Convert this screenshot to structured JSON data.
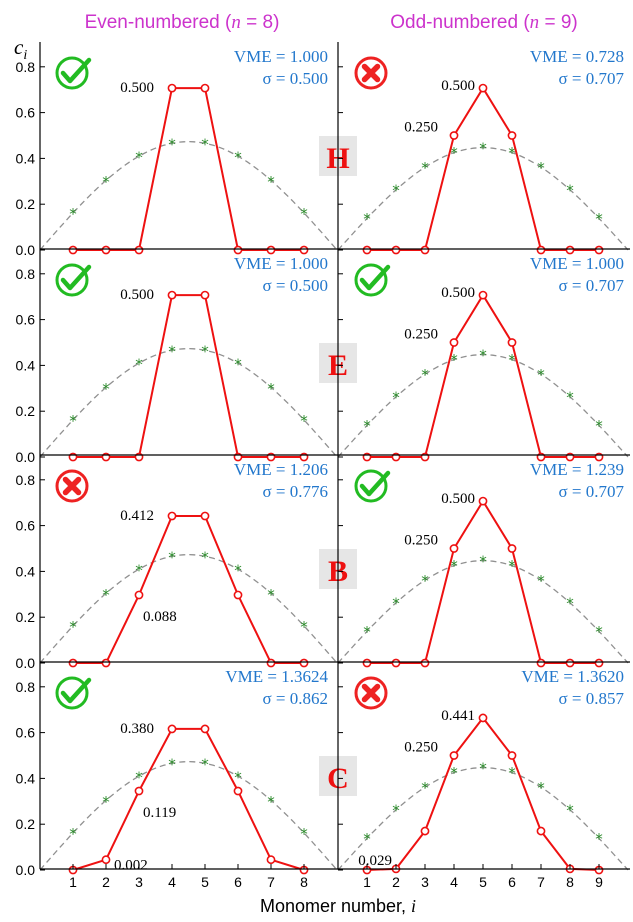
{
  "header": {
    "even_title": "Even-numbered (n = 8)",
    "odd_title": "Odd-numbered (n = 9)"
  },
  "y_axis_label": "c_i",
  "x_axis_label": "Monomer number, i",
  "colors": {
    "title": "#cc33cc",
    "series": "#ee1111",
    "reference": "#909090",
    "reference_marker": "#2a8a2a",
    "stats": "#2277cc",
    "check": "#22bb22",
    "cross": "#ee2222",
    "method_label": "#ee1111",
    "method_box": "#e6e6e6"
  },
  "chart_data": [
    {
      "type": "line",
      "panel": "H-even",
      "method": "H",
      "column": "even",
      "status": "check",
      "vme": "VME = 1.000",
      "sigma": "σ = 0.500",
      "x": [
        1,
        2,
        3,
        4,
        5,
        6,
        7,
        8
      ],
      "series": [
        {
          "values": [
            0,
            0,
            0,
            0.707,
            0.707,
            0,
            0,
            0
          ]
        },
        {
          "values": [
            0.161,
            0.302,
            0.408,
            0.466,
            0.466,
            0.408,
            0.302,
            0.161
          ]
        }
      ],
      "labels": [
        {
          "text": "0.500",
          "i": 4
        }
      ],
      "xlim": [
        0,
        9
      ],
      "ylim": [
        0,
        0.88
      ],
      "yticks": [
        "0.0",
        "0.2",
        "0.4",
        "0.6",
        "0.8"
      ]
    },
    {
      "type": "line",
      "panel": "H-odd",
      "method": "H",
      "column": "odd",
      "status": "cross",
      "vme": "VME = 0.728",
      "sigma": "σ = 0.707",
      "x": [
        1,
        2,
        3,
        4,
        5,
        6,
        7,
        8,
        9
      ],
      "series": [
        {
          "values": [
            0,
            0,
            0,
            0.5,
            0.707,
            0.5,
            0,
            0,
            0
          ]
        },
        {
          "values": [
            0.139,
            0.264,
            0.363,
            0.427,
            0.447,
            0.427,
            0.363,
            0.264,
            0.139
          ]
        }
      ],
      "labels": [
        {
          "text": "0.500",
          "i": 5
        },
        {
          "text": "0.250",
          "i": 4
        }
      ],
      "xlim": [
        0,
        10
      ],
      "ylim": [
        0,
        0.88
      ]
    },
    {
      "type": "line",
      "panel": "E-even",
      "method": "E",
      "column": "even",
      "status": "check",
      "vme": "VME = 1.000",
      "sigma": "σ = 0.500",
      "x": [
        1,
        2,
        3,
        4,
        5,
        6,
        7,
        8
      ],
      "series": [
        {
          "values": [
            0,
            0,
            0,
            0.707,
            0.707,
            0,
            0,
            0
          ]
        },
        {
          "values": [
            0.161,
            0.302,
            0.408,
            0.466,
            0.466,
            0.408,
            0.302,
            0.161
          ]
        }
      ],
      "labels": [
        {
          "text": "0.500",
          "i": 4
        }
      ],
      "xlim": [
        0,
        9
      ],
      "ylim": [
        0,
        0.88
      ],
      "yticks": [
        "0.0",
        "0.2",
        "0.4",
        "0.6",
        "0.8"
      ]
    },
    {
      "type": "line",
      "panel": "E-odd",
      "method": "E",
      "column": "odd",
      "status": "check",
      "vme": "VME = 1.000",
      "sigma": "σ = 0.707",
      "x": [
        1,
        2,
        3,
        4,
        5,
        6,
        7,
        8,
        9
      ],
      "series": [
        {
          "values": [
            0,
            0,
            0,
            0.5,
            0.707,
            0.5,
            0,
            0,
            0
          ]
        },
        {
          "values": [
            0.139,
            0.264,
            0.363,
            0.427,
            0.447,
            0.427,
            0.363,
            0.264,
            0.139
          ]
        }
      ],
      "labels": [
        {
          "text": "0.500",
          "i": 5
        },
        {
          "text": "0.250",
          "i": 4
        }
      ],
      "xlim": [
        0,
        10
      ],
      "ylim": [
        0,
        0.88
      ]
    },
    {
      "type": "line",
      "panel": "B-even",
      "method": "B",
      "column": "even",
      "status": "cross",
      "vme": "VME = 1.206",
      "sigma": "σ = 0.776",
      "x": [
        1,
        2,
        3,
        4,
        5,
        6,
        7,
        8
      ],
      "series": [
        {
          "values": [
            0,
            0,
            0.297,
            0.642,
            0.642,
            0.297,
            0,
            0
          ]
        },
        {
          "values": [
            0.161,
            0.302,
            0.408,
            0.466,
            0.466,
            0.408,
            0.302,
            0.161
          ]
        }
      ],
      "labels": [
        {
          "text": "0.412",
          "i": 4
        },
        {
          "text": "0.088",
          "i": 3
        }
      ],
      "xlim": [
        0,
        9
      ],
      "ylim": [
        0,
        0.88
      ],
      "yticks": [
        "0.0",
        "0.2",
        "0.4",
        "0.6",
        "0.8"
      ]
    },
    {
      "type": "line",
      "panel": "B-odd",
      "method": "B",
      "column": "odd",
      "status": "check",
      "vme": "VME = 1.239",
      "sigma": "σ = 0.707",
      "x": [
        1,
        2,
        3,
        4,
        5,
        6,
        7,
        8,
        9
      ],
      "series": [
        {
          "values": [
            0,
            0,
            0,
            0.5,
            0.707,
            0.5,
            0,
            0,
            0
          ]
        },
        {
          "values": [
            0.139,
            0.264,
            0.363,
            0.427,
            0.447,
            0.427,
            0.363,
            0.264,
            0.139
          ]
        }
      ],
      "labels": [
        {
          "text": "0.500",
          "i": 5
        },
        {
          "text": "0.250",
          "i": 4
        }
      ],
      "xlim": [
        0,
        10
      ],
      "ylim": [
        0,
        0.88
      ]
    },
    {
      "type": "line",
      "panel": "C-even",
      "method": "C",
      "column": "even",
      "status": "check",
      "vme": "VME = 1.3624",
      "sigma": "σ = 0.862",
      "x": [
        1,
        2,
        3,
        4,
        5,
        6,
        7,
        8
      ],
      "series": [
        {
          "values": [
            0,
            0.045,
            0.345,
            0.616,
            0.616,
            0.345,
            0.045,
            0
          ]
        },
        {
          "values": [
            0.161,
            0.302,
            0.408,
            0.466,
            0.466,
            0.408,
            0.302,
            0.161
          ]
        }
      ],
      "labels": [
        {
          "text": "0.380",
          "i": 4
        },
        {
          "text": "0.119",
          "i": 3
        },
        {
          "text": "0.002",
          "i": 2
        }
      ],
      "xlim": [
        0,
        9
      ],
      "ylim": [
        0,
        0.88
      ],
      "yticks": [
        "0.0",
        "0.2",
        "0.4",
        "0.6",
        "0.8"
      ],
      "xticks": [
        "1",
        "2",
        "3",
        "4",
        "5",
        "6",
        "7",
        "8"
      ]
    },
    {
      "type": "line",
      "panel": "C-odd",
      "method": "C",
      "column": "odd",
      "status": "cross",
      "vme": "VME = 1.3620",
      "sigma": "σ = 0.857",
      "x": [
        1,
        2,
        3,
        4,
        5,
        6,
        7,
        8,
        9
      ],
      "series": [
        {
          "values": [
            0,
            0.005,
            0.17,
            0.5,
            0.664,
            0.5,
            0.17,
            0.005,
            0
          ]
        },
        {
          "values": [
            0.139,
            0.264,
            0.363,
            0.427,
            0.447,
            0.427,
            0.363,
            0.264,
            0.139
          ]
        }
      ],
      "labels": [
        {
          "text": "0.441",
          "i": 5
        },
        {
          "text": "0.250",
          "i": 4
        },
        {
          "text": "0.029",
          "i": 2
        }
      ],
      "xlim": [
        0,
        10
      ],
      "ylim": [
        0,
        0.88
      ],
      "xticks": [
        "1",
        "2",
        "3",
        "4",
        "5",
        "6",
        "7",
        "8",
        "9"
      ]
    }
  ]
}
